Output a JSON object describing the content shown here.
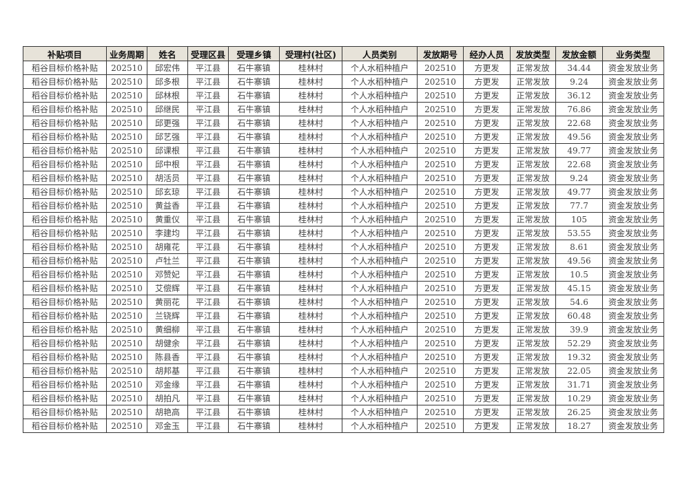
{
  "header_bg": "#e7e3d9",
  "columns": [
    "补贴项目",
    "业务周期",
    "姓名",
    "受理区县",
    "受理乡镇",
    "受理村(社区)",
    "人员类别",
    "发放期号",
    "经办人员",
    "发放类型",
    "发放金额",
    "业务类型"
  ],
  "rows": [
    [
      "稻谷目标价格补贴",
      "202510",
      "邱宏伟",
      "平江县",
      "石牛寨镇",
      "桂林村",
      "个人水稻种植户",
      "202510",
      "方更发",
      "正常发放",
      "34.44",
      "资金发放业务"
    ],
    [
      "稻谷目标价格补贴",
      "202510",
      "邱多根",
      "平江县",
      "石牛寨镇",
      "桂林村",
      "个人水稻种植户",
      "202510",
      "方更发",
      "正常发放",
      "9.24",
      "资金发放业务"
    ],
    [
      "稻谷目标价格补贴",
      "202510",
      "邱林根",
      "平江县",
      "石牛寨镇",
      "桂林村",
      "个人水稻种植户",
      "202510",
      "方更发",
      "正常发放",
      "36.12",
      "资金发放业务"
    ],
    [
      "稻谷目标价格补贴",
      "202510",
      "邱继民",
      "平江县",
      "石牛寨镇",
      "桂林村",
      "个人水稻种植户",
      "202510",
      "方更发",
      "正常发放",
      "76.86",
      "资金发放业务"
    ],
    [
      "稻谷目标价格补贴",
      "202510",
      "邱更强",
      "平江县",
      "石牛寨镇",
      "桂林村",
      "个人水稻种植户",
      "202510",
      "方更发",
      "正常发放",
      "22.68",
      "资金发放业务"
    ],
    [
      "稻谷目标价格补贴",
      "202510",
      "邱艺强",
      "平江县",
      "石牛寨镇",
      "桂林村",
      "个人水稻种植户",
      "202510",
      "方更发",
      "正常发放",
      "49.56",
      "资金发放业务"
    ],
    [
      "稻谷目标价格补贴",
      "202510",
      "邱课根",
      "平江县",
      "石牛寨镇",
      "桂林村",
      "个人水稻种植户",
      "202510",
      "方更发",
      "正常发放",
      "49.77",
      "资金发放业务"
    ],
    [
      "稻谷目标价格补贴",
      "202510",
      "邱中根",
      "平江县",
      "石牛寨镇",
      "桂林村",
      "个人水稻种植户",
      "202510",
      "方更发",
      "正常发放",
      "22.68",
      "资金发放业务"
    ],
    [
      "稻谷目标价格补贴",
      "202510",
      "胡活员",
      "平江县",
      "石牛寨镇",
      "桂林村",
      "个人水稻种植户",
      "202510",
      "方更发",
      "正常发放",
      "9.24",
      "资金发放业务"
    ],
    [
      "稻谷目标价格补贴",
      "202510",
      "邱玄琼",
      "平江县",
      "石牛寨镇",
      "桂林村",
      "个人水稻种植户",
      "202510",
      "方更发",
      "正常发放",
      "49.77",
      "资金发放业务"
    ],
    [
      "稻谷目标价格补贴",
      "202510",
      "黄益香",
      "平江县",
      "石牛寨镇",
      "桂林村",
      "个人水稻种植户",
      "202510",
      "方更发",
      "正常发放",
      "77.7",
      "资金发放业务"
    ],
    [
      "稻谷目标价格补贴",
      "202510",
      "黄重仪",
      "平江县",
      "石牛寨镇",
      "桂林村",
      "个人水稻种植户",
      "202510",
      "方更发",
      "正常发放",
      "105",
      "资金发放业务"
    ],
    [
      "稻谷目标价格补贴",
      "202510",
      "李建均",
      "平江县",
      "石牛寨镇",
      "桂林村",
      "个人水稻种植户",
      "202510",
      "方更发",
      "正常发放",
      "53.55",
      "资金发放业务"
    ],
    [
      "稻谷目标价格补贴",
      "202510",
      "胡雍花",
      "平江县",
      "石牛寨镇",
      "桂林村",
      "个人水稻种植户",
      "202510",
      "方更发",
      "正常发放",
      "8.61",
      "资金发放业务"
    ],
    [
      "稻谷目标价格补贴",
      "202510",
      "卢牡兰",
      "平江县",
      "石牛寨镇",
      "桂林村",
      "个人水稻种植户",
      "202510",
      "方更发",
      "正常发放",
      "49.56",
      "资金发放业务"
    ],
    [
      "稻谷目标价格补贴",
      "202510",
      "邓赞妃",
      "平江县",
      "石牛寨镇",
      "桂林村",
      "个人水稻种植户",
      "202510",
      "方更发",
      "正常发放",
      "10.5",
      "资金发放业务"
    ],
    [
      "稻谷目标价格补贴",
      "202510",
      "艾偿辉",
      "平江县",
      "石牛寨镇",
      "桂林村",
      "个人水稻种植户",
      "202510",
      "方更发",
      "正常发放",
      "45.15",
      "资金发放业务"
    ],
    [
      "稻谷目标价格补贴",
      "202510",
      "黄丽花",
      "平江县",
      "石牛寨镇",
      "桂林村",
      "个人水稻种植户",
      "202510",
      "方更发",
      "正常发放",
      "54.6",
      "资金发放业务"
    ],
    [
      "稻谷目标价格补贴",
      "202510",
      "兰铙辉",
      "平江县",
      "石牛寨镇",
      "桂林村",
      "个人水稻种植户",
      "202510",
      "方更发",
      "正常发放",
      "60.48",
      "资金发放业务"
    ],
    [
      "稻谷目标价格补贴",
      "202510",
      "黄细柳",
      "平江县",
      "石牛寨镇",
      "桂林村",
      "个人水稻种植户",
      "202510",
      "方更发",
      "正常发放",
      "39.9",
      "资金发放业务"
    ],
    [
      "稻谷目标价格补贴",
      "202510",
      "胡健余",
      "平江县",
      "石牛寨镇",
      "桂林村",
      "个人水稻种植户",
      "202510",
      "方更发",
      "正常发放",
      "52.29",
      "资金发放业务"
    ],
    [
      "稻谷目标价格补贴",
      "202510",
      "陈县香",
      "平江县",
      "石牛寨镇",
      "桂林村",
      "个人水稻种植户",
      "202510",
      "方更发",
      "正常发放",
      "19.32",
      "资金发放业务"
    ],
    [
      "稻谷目标价格补贴",
      "202510",
      "胡邦基",
      "平江县",
      "石牛寨镇",
      "桂林村",
      "个人水稻种植户",
      "202510",
      "方更发",
      "正常发放",
      "22.05",
      "资金发放业务"
    ],
    [
      "稻谷目标价格补贴",
      "202510",
      "邓金缘",
      "平江县",
      "石牛寨镇",
      "桂林村",
      "个人水稻种植户",
      "202510",
      "方更发",
      "正常发放",
      "31.71",
      "资金发放业务"
    ],
    [
      "稻谷目标价格补贴",
      "202510",
      "胡拍凡",
      "平江县",
      "石牛寨镇",
      "桂林村",
      "个人水稻种植户",
      "202510",
      "方更发",
      "正常发放",
      "10.29",
      "资金发放业务"
    ],
    [
      "稻谷目标价格补贴",
      "202510",
      "胡艳高",
      "平江县",
      "石牛寨镇",
      "桂林村",
      "个人水稻种植户",
      "202510",
      "方更发",
      "正常发放",
      "26.25",
      "资金发放业务"
    ],
    [
      "稻谷目标价格补贴",
      "202510",
      "邓金玉",
      "平江县",
      "石牛寨镇",
      "桂林村",
      "个人水稻种植户",
      "202510",
      "方更发",
      "正常发放",
      "18.27",
      "资金发放业务"
    ]
  ]
}
